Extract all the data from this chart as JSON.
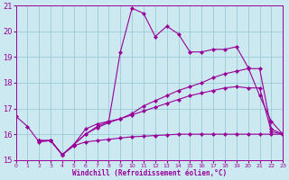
{
  "xlabel": "Windchill (Refroidissement éolien,°C)",
  "xlim": [
    0,
    23
  ],
  "ylim": [
    15,
    21
  ],
  "yticks": [
    15,
    16,
    17,
    18,
    19,
    20,
    21
  ],
  "xticks": [
    0,
    1,
    2,
    3,
    4,
    5,
    6,
    7,
    8,
    9,
    10,
    11,
    12,
    13,
    14,
    15,
    16,
    17,
    18,
    19,
    20,
    21,
    22,
    23
  ],
  "bg_color": "#cce8f0",
  "grid_color": "#99ccd8",
  "line_color": "#990099",
  "line1_x": [
    0,
    1,
    2,
    3,
    4,
    5,
    6,
    7,
    8,
    9,
    10,
    11,
    12,
    13,
    14,
    15,
    16,
    17,
    18,
    19,
    20,
    21,
    22,
    23
  ],
  "line1_y": [
    16.7,
    16.3,
    15.7,
    15.75,
    15.2,
    15.6,
    16.2,
    16.4,
    16.5,
    19.2,
    20.9,
    20.7,
    19.8,
    20.2,
    19.9,
    19.2,
    19.2,
    19.3,
    19.3,
    19.4,
    18.6,
    17.5,
    16.5,
    16.0
  ],
  "line2_x": [
    2,
    3,
    4,
    5,
    6,
    7,
    8,
    9,
    10,
    11,
    12,
    13,
    14,
    15,
    16,
    17,
    18,
    19,
    20,
    21,
    22,
    23
  ],
  "line2_y": [
    15.75,
    15.75,
    15.2,
    15.6,
    16.0,
    16.3,
    16.5,
    16.6,
    16.8,
    17.1,
    17.3,
    17.5,
    17.7,
    17.85,
    18.0,
    18.2,
    18.35,
    18.45,
    18.55,
    18.55,
    16.2,
    16.0
  ],
  "line3_x": [
    2,
    3,
    4,
    5,
    6,
    7,
    8,
    9,
    10,
    11,
    12,
    13,
    14,
    15,
    16,
    17,
    18,
    19,
    20,
    21,
    22,
    23
  ],
  "line3_y": [
    15.75,
    15.75,
    15.2,
    15.6,
    16.0,
    16.25,
    16.45,
    16.6,
    16.75,
    16.9,
    17.05,
    17.2,
    17.35,
    17.5,
    17.6,
    17.7,
    17.8,
    17.85,
    17.8,
    17.8,
    16.1,
    16.0
  ],
  "line4_x": [
    2,
    3,
    4,
    5,
    6,
    7,
    8,
    9,
    10,
    11,
    12,
    13,
    14,
    15,
    16,
    17,
    18,
    19,
    20,
    21,
    22,
    23
  ],
  "line4_y": [
    15.75,
    15.75,
    15.2,
    15.55,
    15.7,
    15.75,
    15.8,
    15.85,
    15.9,
    15.92,
    15.95,
    15.97,
    16.0,
    16.0,
    16.0,
    16.0,
    16.0,
    16.0,
    16.0,
    16.0,
    16.0,
    16.0
  ]
}
